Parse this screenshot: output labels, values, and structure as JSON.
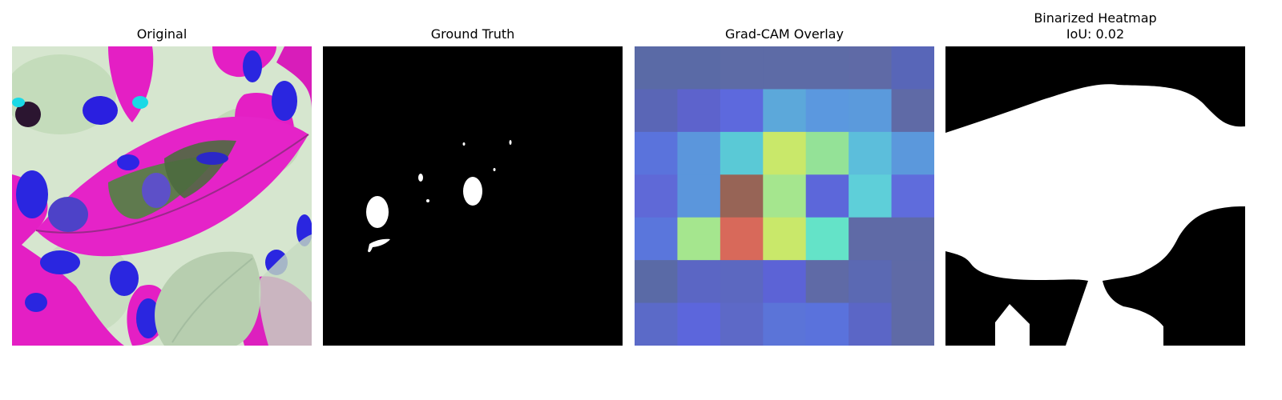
{
  "panels": {
    "original": {
      "title": "Original"
    },
    "ground_truth": {
      "title": "Ground Truth"
    },
    "gradcam": {
      "title": "Grad-CAM Overlay",
      "grid": [
        [
          "#5a6aa6",
          "#5a6aa6",
          "#5d6ba6",
          "#5d6ba6",
          "#5d6ba6",
          "#5f6aa6",
          "#5866b8"
        ],
        [
          "#5a66b6",
          "#5d63cc",
          "#5d69dd",
          "#5ca8da",
          "#5b98df",
          "#5b9adc",
          "#5f6aa6"
        ],
        [
          "#5a73dc",
          "#5b96dc",
          "#5ac9d6",
          "#c9e86a",
          "#94e297",
          "#5cbedb",
          "#5b98dc"
        ],
        [
          "#5f69d7",
          "#5b96dc",
          "#976456",
          "#a5e68e",
          "#5c67da",
          "#5ecfd9",
          "#5f6cdc"
        ],
        [
          "#5a76dc",
          "#a5e68e",
          "#d8695a",
          "#c9e86a",
          "#64e3c8",
          "#5f6aa6",
          "#5f6aa6"
        ],
        [
          "#5a6aa6",
          "#5b66c4",
          "#5c68c0",
          "#5c63d6",
          "#5f6aa6",
          "#5b69b3",
          "#5f6aa6"
        ],
        [
          "#5b6ac8",
          "#5c66dc",
          "#5d69c7",
          "#5b74d8",
          "#5a72dc",
          "#5b66c6",
          "#5f6aa6"
        ]
      ]
    },
    "binarized": {
      "title": "Binarized Heatmap",
      "iou_label": "IoU: 0.02"
    }
  }
}
